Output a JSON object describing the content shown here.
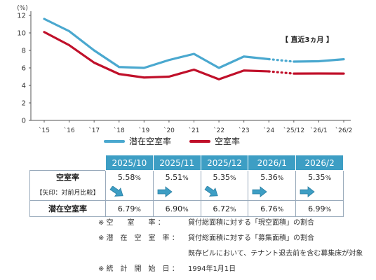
{
  "chart_data": {
    "type": "line",
    "y_unit": "(%)",
    "yticks": [
      "0",
      "2",
      "4",
      "6",
      "8",
      "10",
      "12"
    ],
    "ylim": [
      0,
      12
    ],
    "x": [
      "`15",
      "`16",
      "`17",
      "`18",
      "`19",
      "`20",
      "`21",
      "`22",
      "`23",
      "`24",
      "`25/12",
      "`26/1",
      "`26/2"
    ],
    "recent_label": "【 直近3ヵ月 】",
    "series": [
      {
        "name": "潜在空室率",
        "color": "#4aa8cf",
        "values": [
          11.6,
          10.2,
          8.0,
          6.1,
          6.0,
          6.9,
          7.6,
          6.0,
          7.3,
          7.0,
          6.72,
          6.76,
          6.99
        ]
      },
      {
        "name": "空室率",
        "color": "#c0102a",
        "values": [
          10.1,
          8.6,
          6.6,
          5.3,
          4.9,
          5.0,
          5.8,
          4.7,
          5.7,
          5.6,
          5.35,
          5.36,
          5.35
        ]
      }
    ]
  },
  "table": {
    "columns": [
      "2025/10",
      "2025/11",
      "2025/12",
      "2026/1",
      "2026/2"
    ],
    "vacancy_label": "空室率",
    "vacancy_sub": "【矢印：対前月比較】",
    "vacancy": [
      {
        "num": "5.58",
        "unit": "%",
        "arrow": "down"
      },
      {
        "num": "5.51",
        "unit": "%",
        "arrow": "right"
      },
      {
        "num": "5.35",
        "unit": "%",
        "arrow": "down"
      },
      {
        "num": "5.36",
        "unit": "%",
        "arrow": "right"
      },
      {
        "num": "5.35",
        "unit": "%",
        "arrow": "right"
      }
    ],
    "potential_label": "潜在空室率",
    "potential": [
      {
        "num": "6.79",
        "unit": "%"
      },
      {
        "num": "6.90",
        "unit": "%"
      },
      {
        "num": "6.72",
        "unit": "%"
      },
      {
        "num": "6.76",
        "unit": "%"
      },
      {
        "num": "6.99",
        "unit": "%"
      }
    ]
  },
  "notes": [
    {
      "term": "※ 空　　室　　率 ：",
      "text": "貸付総面積に対する「現空面積」の割合"
    },
    {
      "term": "※ 潜　在　空　室　率 ：",
      "text": "貸付総面積に対する「募集面積」の割合"
    },
    {
      "term": "",
      "text": "既存ビルにおいて、テナント退去前を含む募集床が対象"
    },
    {
      "term": "※ 統　計　開　始　日 ：",
      "text": "1994年1月1日"
    }
  ],
  "colors": {
    "accent": "#3d9ec4",
    "potential_line": "#4aa8cf",
    "vacancy_line": "#c0102a"
  }
}
